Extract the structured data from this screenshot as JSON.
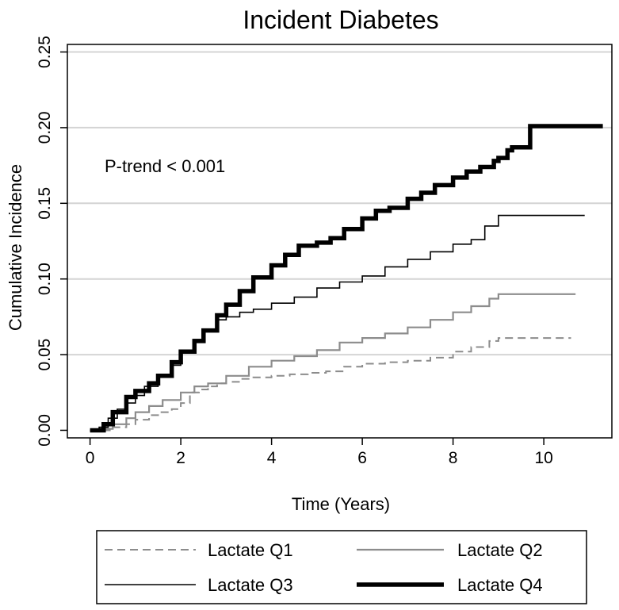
{
  "chart_data": {
    "type": "line",
    "title": "Incident Diabetes",
    "xlabel": "Time (Years)",
    "ylabel": "Cumulative Incidence",
    "xlim": [
      -0.5,
      11.5
    ],
    "ylim": [
      -0.005,
      0.255
    ],
    "xticks": [
      0,
      2,
      4,
      6,
      8,
      10
    ],
    "xtick_labels": [
      "0",
      "2",
      "4",
      "6",
      "8",
      "10"
    ],
    "yticks": [
      0.0,
      0.05,
      0.1,
      0.15,
      0.2,
      0.25
    ],
    "ytick_labels": [
      "0.00",
      "0.05",
      "0.10",
      "0.15",
      "0.20",
      "0.25"
    ],
    "grid": "horizontal",
    "legend_position": "bottom",
    "annotation": "P-trend < 0.001",
    "series": [
      {
        "name": "Lactate Q1",
        "style": "dashed",
        "color": "#8c8c8c",
        "x": [
          0.0,
          0.2,
          0.5,
          0.8,
          1.0,
          1.3,
          1.5,
          1.8,
          2.0,
          2.2,
          2.4,
          2.6,
          2.8,
          3.0,
          3.3,
          3.6,
          4.0,
          4.4,
          4.8,
          5.2,
          5.6,
          6.0,
          6.5,
          7.0,
          7.5,
          8.0,
          8.4,
          8.8,
          9.0,
          9.5,
          10.0,
          10.6
        ],
        "y": [
          0.0,
          0.0,
          0.002,
          0.004,
          0.007,
          0.01,
          0.012,
          0.014,
          0.018,
          0.025,
          0.027,
          0.029,
          0.031,
          0.032,
          0.034,
          0.035,
          0.036,
          0.037,
          0.038,
          0.039,
          0.042,
          0.044,
          0.045,
          0.046,
          0.048,
          0.052,
          0.055,
          0.059,
          0.061,
          0.061,
          0.061,
          0.061
        ]
      },
      {
        "name": "Lactate Q2",
        "style": "solid",
        "color": "#8c8c8c",
        "x": [
          0.0,
          0.2,
          0.5,
          0.8,
          1.0,
          1.3,
          1.6,
          2.0,
          2.3,
          2.6,
          3.0,
          3.5,
          4.0,
          4.5,
          5.0,
          5.5,
          6.0,
          6.5,
          7.0,
          7.5,
          8.0,
          8.4,
          8.8,
          9.0,
          9.5,
          10.0,
          10.7
        ],
        "y": [
          0.0,
          0.001,
          0.004,
          0.008,
          0.012,
          0.016,
          0.02,
          0.025,
          0.029,
          0.031,
          0.036,
          0.042,
          0.046,
          0.049,
          0.053,
          0.058,
          0.061,
          0.064,
          0.068,
          0.073,
          0.078,
          0.082,
          0.087,
          0.09,
          0.09,
          0.09,
          0.09
        ]
      },
      {
        "name": "Lactate Q3",
        "style": "solid",
        "color": "#000000",
        "x": [
          0.0,
          0.2,
          0.4,
          0.6,
          0.8,
          1.0,
          1.2,
          1.5,
          1.8,
          2.0,
          2.3,
          2.5,
          2.8,
          3.0,
          3.3,
          3.6,
          4.0,
          4.5,
          5.0,
          5.5,
          6.0,
          6.5,
          7.0,
          7.5,
          8.0,
          8.4,
          8.7,
          9.0,
          9.5,
          10.0,
          10.9
        ],
        "y": [
          0.0,
          0.002,
          0.008,
          0.014,
          0.018,
          0.023,
          0.029,
          0.036,
          0.043,
          0.052,
          0.06,
          0.066,
          0.073,
          0.075,
          0.078,
          0.08,
          0.084,
          0.088,
          0.094,
          0.098,
          0.102,
          0.108,
          0.113,
          0.118,
          0.123,
          0.126,
          0.135,
          0.142,
          0.142,
          0.142,
          0.142
        ]
      },
      {
        "name": "Lactate Q4",
        "style": "solid-thick",
        "color": "#000000",
        "x": [
          0.0,
          0.3,
          0.5,
          0.8,
          1.0,
          1.3,
          1.5,
          1.8,
          2.0,
          2.3,
          2.5,
          2.8,
          3.0,
          3.3,
          3.6,
          4.0,
          4.3,
          4.6,
          5.0,
          5.3,
          5.6,
          6.0,
          6.3,
          6.6,
          7.0,
          7.3,
          7.6,
          8.0,
          8.3,
          8.6,
          8.9,
          9.0,
          9.2,
          9.3,
          9.7,
          10.0,
          11.3
        ],
        "y": [
          0.0,
          0.004,
          0.012,
          0.022,
          0.026,
          0.031,
          0.036,
          0.045,
          0.052,
          0.059,
          0.066,
          0.076,
          0.083,
          0.092,
          0.101,
          0.109,
          0.116,
          0.122,
          0.124,
          0.127,
          0.133,
          0.14,
          0.145,
          0.147,
          0.153,
          0.157,
          0.162,
          0.167,
          0.171,
          0.174,
          0.178,
          0.18,
          0.185,
          0.187,
          0.201,
          0.201,
          0.201
        ]
      }
    ]
  }
}
